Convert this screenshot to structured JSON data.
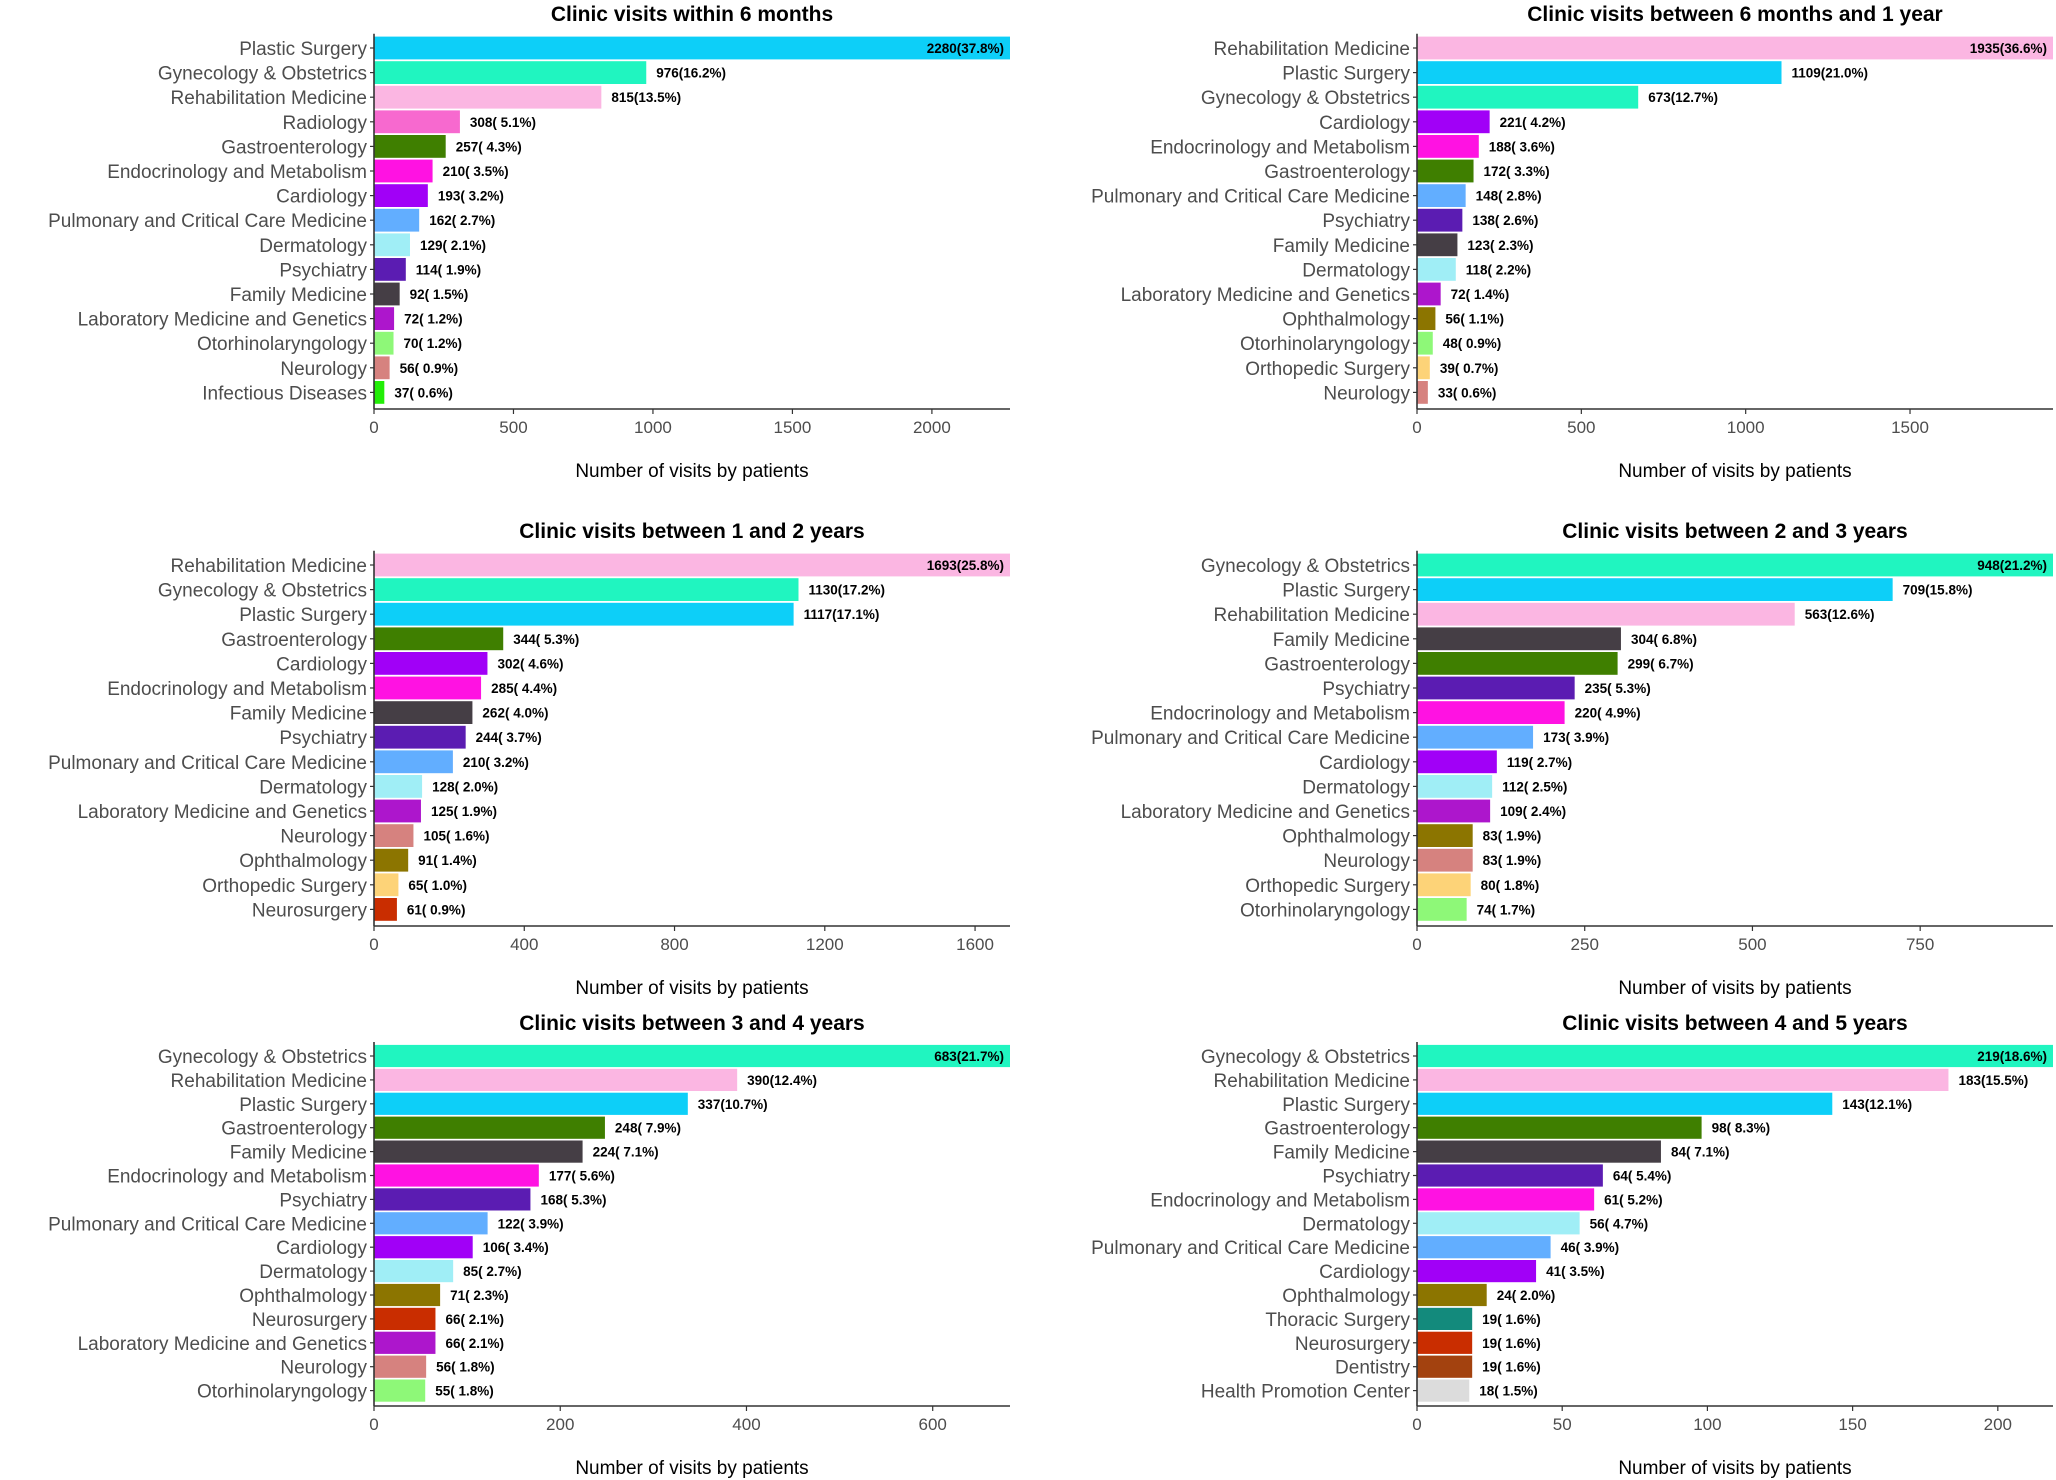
{
  "chart_data": [
    {
      "type": "bar",
      "orientation": "horizontal",
      "title": "Clinic visits within 6 months",
      "xlabel": "Number of visits by patients",
      "ylabel": "",
      "xlim": [
        0,
        2280
      ],
      "ticks": [
        0,
        500,
        1000,
        1500,
        2000
      ],
      "tick_labels": [
        "0",
        "500",
        "1000",
        "1500",
        "2000"
      ],
      "grid": false,
      "legend": "none",
      "categories": [
        "Plastic Surgery",
        "Gynecology & Obstetrics",
        "Rehabilitation Medicine",
        "Radiology",
        "Gastroenterology",
        "Endocrinology and Metabolism",
        "Cardiology",
        "Pulmonary and Critical Care Medicine",
        "Dermatology",
        "Psychiatry",
        "Family Medicine",
        "Laboratory Medicine and Genetics",
        "Otorhinolaryngology",
        "Neurology",
        "Infectious Diseases"
      ],
      "values": [
        2280,
        976,
        815,
        308,
        257,
        210,
        193,
        162,
        129,
        114,
        92,
        72,
        70,
        56,
        37
      ],
      "labels": [
        "2280(37.8%)",
        "976(16.2%)",
        "815(13.5%)",
        "308( 5.1%)",
        "257( 4.3%)",
        "210( 3.5%)",
        "193( 3.2%)",
        "162( 2.7%)",
        "129( 2.1%)",
        "114( 1.9%)",
        "92( 1.5%)",
        "72( 1.2%)",
        "70( 1.2%)",
        "56( 0.9%)",
        "37( 0.6%)"
      ],
      "colors": [
        "#0dcff8",
        "#20f5c0",
        "#fbb6e2",
        "#f769cf",
        "#3f7f00",
        "#ff12e2",
        "#a100f7",
        "#62aeff",
        "#a0eef6",
        "#5b1cb2",
        "#453e45",
        "#ad16cc",
        "#8ef878",
        "#d6827f",
        "#22ee07"
      ]
    },
    {
      "type": "bar",
      "orientation": "horizontal",
      "title": "Clinic visits between 6 months and 1 year",
      "xlabel": "Number of visits by patients",
      "ylabel": "",
      "xlim": [
        0,
        1935
      ],
      "ticks": [
        0,
        500,
        1000,
        1500
      ],
      "tick_labels": [
        "0",
        "500",
        "1000",
        "1500"
      ],
      "grid": false,
      "legend": "none",
      "categories": [
        "Rehabilitation Medicine",
        "Plastic Surgery",
        "Gynecology & Obstetrics",
        "Cardiology",
        "Endocrinology and Metabolism",
        "Gastroenterology",
        "Pulmonary and Critical Care Medicine",
        "Psychiatry",
        "Family Medicine",
        "Dermatology",
        "Laboratory Medicine and Genetics",
        "Ophthalmology",
        "Otorhinolaryngology",
        "Orthopedic Surgery",
        "Neurology"
      ],
      "values": [
        1935,
        1109,
        673,
        221,
        188,
        172,
        148,
        138,
        123,
        118,
        72,
        56,
        48,
        39,
        33
      ],
      "labels": [
        "1935(36.6%)",
        "1109(21.0%)",
        "673(12.7%)",
        "221( 4.2%)",
        "188( 3.6%)",
        "172( 3.3%)",
        "148( 2.8%)",
        "138( 2.6%)",
        "123( 2.3%)",
        "118( 2.2%)",
        "72( 1.4%)",
        "56( 1.1%)",
        "48( 0.9%)",
        "39( 0.7%)",
        "33( 0.6%)"
      ],
      "colors": [
        "#fbb6e2",
        "#0dcff8",
        "#20f5c0",
        "#a100f7",
        "#ff12e2",
        "#3f7f00",
        "#62aeff",
        "#5b1cb2",
        "#453e45",
        "#a0eef6",
        "#ad16cc",
        "#8c7500",
        "#8ef878",
        "#fdd378",
        "#d6827f"
      ]
    },
    {
      "type": "bar",
      "orientation": "horizontal",
      "title": "Clinic visits between 1 and 2 years",
      "xlabel": "Number of visits by patients",
      "ylabel": "",
      "xlim": [
        0,
        1693
      ],
      "ticks": [
        0,
        400,
        800,
        1200,
        1600
      ],
      "tick_labels": [
        "0",
        "400",
        "800",
        "1200",
        "1600"
      ],
      "grid": false,
      "legend": "none",
      "categories": [
        "Rehabilitation Medicine",
        "Gynecology & Obstetrics",
        "Plastic Surgery",
        "Gastroenterology",
        "Cardiology",
        "Endocrinology and Metabolism",
        "Family Medicine",
        "Psychiatry",
        "Pulmonary and Critical Care Medicine",
        "Dermatology",
        "Laboratory Medicine and Genetics",
        "Neurology",
        "Ophthalmology",
        "Orthopedic Surgery",
        "Neurosurgery"
      ],
      "values": [
        1693,
        1130,
        1117,
        344,
        302,
        285,
        262,
        244,
        210,
        128,
        125,
        105,
        91,
        65,
        61
      ],
      "labels": [
        "1693(25.8%)",
        "1130(17.2%)",
        "1117(17.1%)",
        "344( 5.3%)",
        "302( 4.6%)",
        "285( 4.4%)",
        "262( 4.0%)",
        "244( 3.7%)",
        "210( 3.2%)",
        "128( 2.0%)",
        "125( 1.9%)",
        "105( 1.6%)",
        "91( 1.4%)",
        "65( 1.0%)",
        "61( 0.9%)"
      ],
      "colors": [
        "#fbb6e2",
        "#20f5c0",
        "#0dcff8",
        "#3f7f00",
        "#a100f7",
        "#ff12e2",
        "#453e45",
        "#5b1cb2",
        "#62aeff",
        "#a0eef6",
        "#ad16cc",
        "#d6827f",
        "#8c7500",
        "#fdd378",
        "#c92d00"
      ]
    },
    {
      "type": "bar",
      "orientation": "horizontal",
      "title": "Clinic visits between 2 and 3 years",
      "xlabel": "Number of visits by patients",
      "ylabel": "",
      "xlim": [
        0,
        948
      ],
      "ticks": [
        0,
        250,
        500,
        750
      ],
      "tick_labels": [
        "0",
        "250",
        "500",
        "750"
      ],
      "grid": false,
      "legend": "none",
      "categories": [
        "Gynecology & Obstetrics",
        "Plastic Surgery",
        "Rehabilitation Medicine",
        "Family Medicine",
        "Gastroenterology",
        "Psychiatry",
        "Endocrinology and Metabolism",
        "Pulmonary and Critical Care Medicine",
        "Cardiology",
        "Dermatology",
        "Laboratory Medicine and Genetics",
        "Ophthalmology",
        "Neurology",
        "Orthopedic Surgery",
        "Otorhinolaryngology"
      ],
      "values": [
        948,
        709,
        563,
        304,
        299,
        235,
        220,
        173,
        119,
        112,
        109,
        83,
        83,
        80,
        74
      ],
      "labels": [
        "948(21.2%)",
        "709(15.8%)",
        "563(12.6%)",
        "304( 6.8%)",
        "299( 6.7%)",
        "235( 5.3%)",
        "220( 4.9%)",
        "173( 3.9%)",
        "119( 2.7%)",
        "112( 2.5%)",
        "109( 2.4%)",
        "83( 1.9%)",
        "83( 1.9%)",
        "80( 1.8%)",
        "74( 1.7%)"
      ],
      "colors": [
        "#20f5c0",
        "#0dcff8",
        "#fbb6e2",
        "#453e45",
        "#3f7f00",
        "#5b1cb2",
        "#ff12e2",
        "#62aeff",
        "#a100f7",
        "#a0eef6",
        "#ad16cc",
        "#8c7500",
        "#d6827f",
        "#fdd378",
        "#8ef878"
      ]
    },
    {
      "type": "bar",
      "orientation": "horizontal",
      "title": "Clinic visits between 3 and 4 years",
      "xlabel": "Number of visits by patients",
      "ylabel": "",
      "xlim": [
        0,
        683
      ],
      "ticks": [
        0,
        200,
        400,
        600
      ],
      "tick_labels": [
        "0",
        "200",
        "400",
        "600"
      ],
      "grid": false,
      "legend": "none",
      "categories": [
        "Gynecology & Obstetrics",
        "Rehabilitation Medicine",
        "Plastic Surgery",
        "Gastroenterology",
        "Family Medicine",
        "Endocrinology and Metabolism",
        "Psychiatry",
        "Pulmonary and Critical Care Medicine",
        "Cardiology",
        "Dermatology",
        "Ophthalmology",
        "Neurosurgery",
        "Laboratory Medicine and Genetics",
        "Neurology",
        "Otorhinolaryngology"
      ],
      "values": [
        683,
        390,
        337,
        248,
        224,
        177,
        168,
        122,
        106,
        85,
        71,
        66,
        66,
        56,
        55
      ],
      "labels": [
        "683(21.7%)",
        "390(12.4%)",
        "337(10.7%)",
        "248( 7.9%)",
        "224( 7.1%)",
        "177( 5.6%)",
        "168( 5.3%)",
        "122( 3.9%)",
        "106( 3.4%)",
        "85( 2.7%)",
        "71( 2.3%)",
        "66( 2.1%)",
        "66( 2.1%)",
        "56( 1.8%)",
        "55( 1.8%)"
      ],
      "colors": [
        "#20f5c0",
        "#fbb6e2",
        "#0dcff8",
        "#3f7f00",
        "#453e45",
        "#ff12e2",
        "#5b1cb2",
        "#62aeff",
        "#a100f7",
        "#a0eef6",
        "#8c7500",
        "#c92d00",
        "#ad16cc",
        "#d6827f",
        "#8ef878"
      ]
    },
    {
      "type": "bar",
      "orientation": "horizontal",
      "title": "Clinic visits between 4 and 5 years",
      "xlabel": "Number of visits by patients",
      "ylabel": "",
      "xlim": [
        0,
        219
      ],
      "ticks": [
        0,
        50,
        100,
        150,
        200
      ],
      "tick_labels": [
        "0",
        "50",
        "100",
        "150",
        "200"
      ],
      "grid": false,
      "legend": "none",
      "categories": [
        "Gynecology & Obstetrics",
        "Rehabilitation Medicine",
        "Plastic Surgery",
        "Gastroenterology",
        "Family Medicine",
        "Psychiatry",
        "Endocrinology and Metabolism",
        "Dermatology",
        "Pulmonary and Critical Care Medicine",
        "Cardiology",
        "Ophthalmology",
        "Thoracic Surgery",
        "Neurosurgery",
        "Dentistry",
        "Health Promotion Center"
      ],
      "values": [
        219,
        183,
        143,
        98,
        84,
        64,
        61,
        56,
        46,
        41,
        24,
        19,
        19,
        19,
        18
      ],
      "labels": [
        "219(18.6%)",
        "183(15.5%)",
        "143(12.1%)",
        "98( 8.3%)",
        "84( 7.1%)",
        "64( 5.4%)",
        "61( 5.2%)",
        "56( 4.7%)",
        "46( 3.9%)",
        "41( 3.5%)",
        "24( 2.0%)",
        "19( 1.6%)",
        "19( 1.6%)",
        "19( 1.6%)",
        "18( 1.5%)"
      ],
      "colors": [
        "#20f5c0",
        "#fbb6e2",
        "#0dcff8",
        "#3f7f00",
        "#453e45",
        "#5b1cb2",
        "#ff12e2",
        "#a0eef6",
        "#62aeff",
        "#a100f7",
        "#8c7500",
        "#138a7c",
        "#c92d00",
        "#a3420f",
        "#dcdcdc"
      ]
    }
  ]
}
